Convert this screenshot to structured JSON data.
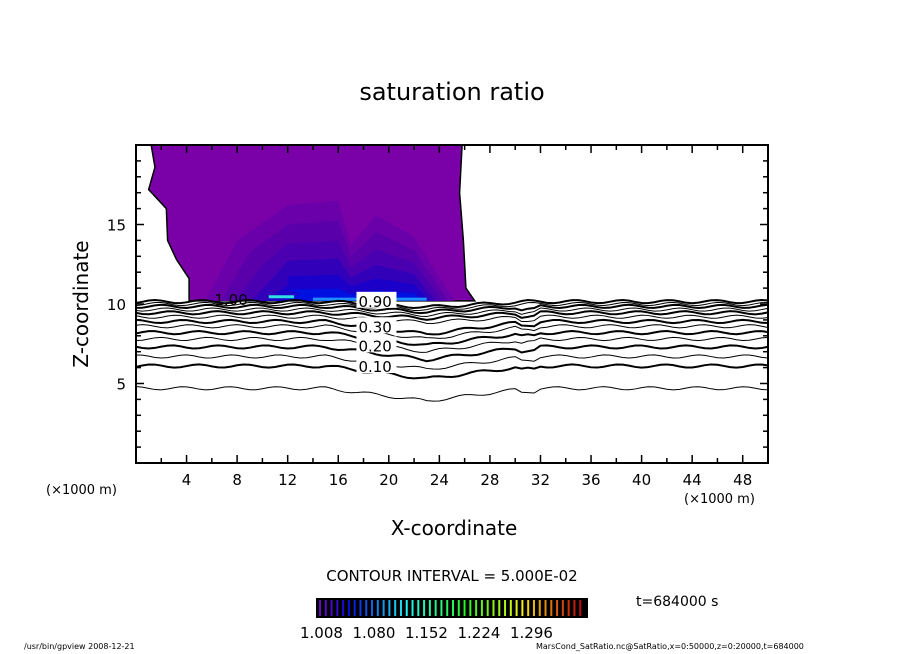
{
  "chart_data": {
    "type": "contour",
    "title": "saturation ratio",
    "xlabel": "X-coordinate",
    "ylabel": "Z-coordinate",
    "x_unit": "(×1000 m)",
    "y_unit": "(×1000 m)",
    "xlim": [
      0,
      50
    ],
    "ylim": [
      0,
      20
    ],
    "x_ticks": [
      4,
      8,
      12,
      16,
      20,
      24,
      28,
      32,
      36,
      40,
      44,
      48
    ],
    "y_ticks": [
      5,
      10,
      15
    ],
    "contour_interval_label": "CONTOUR INTERVAL = 5.000E-02",
    "contour_labels": [
      {
        "text": "1.00",
        "x": 6.2,
        "z": 10.3
      },
      {
        "text": "0.90",
        "x": 17.6,
        "z": 10.2
      },
      {
        "text": "0.30",
        "x": 17.6,
        "z": 8.6
      },
      {
        "text": "0.20",
        "x": 17.6,
        "z": 7.4
      },
      {
        "text": "0.10",
        "x": 17.6,
        "z": 6.1
      }
    ],
    "contour_line_levels_z": [
      4.7,
      6.1,
      6.7,
      7.3,
      7.8,
      8.2,
      8.6,
      8.9,
      9.2,
      9.45,
      9.65,
      9.85,
      10.0,
      10.15
    ],
    "colorbar": {
      "ticks": [
        "1.008",
        "1.080",
        "1.152",
        "1.224",
        "1.296"
      ],
      "range": [
        1.0,
        1.33
      ]
    },
    "time_label": "t=684000 s",
    "footer_left": "/usr/bin/gpview  2008-12-21",
    "footer_right": "MarsCond_SatRatio.nc@SatRatio,x=0:50000,z=0:20000,t=684000"
  }
}
